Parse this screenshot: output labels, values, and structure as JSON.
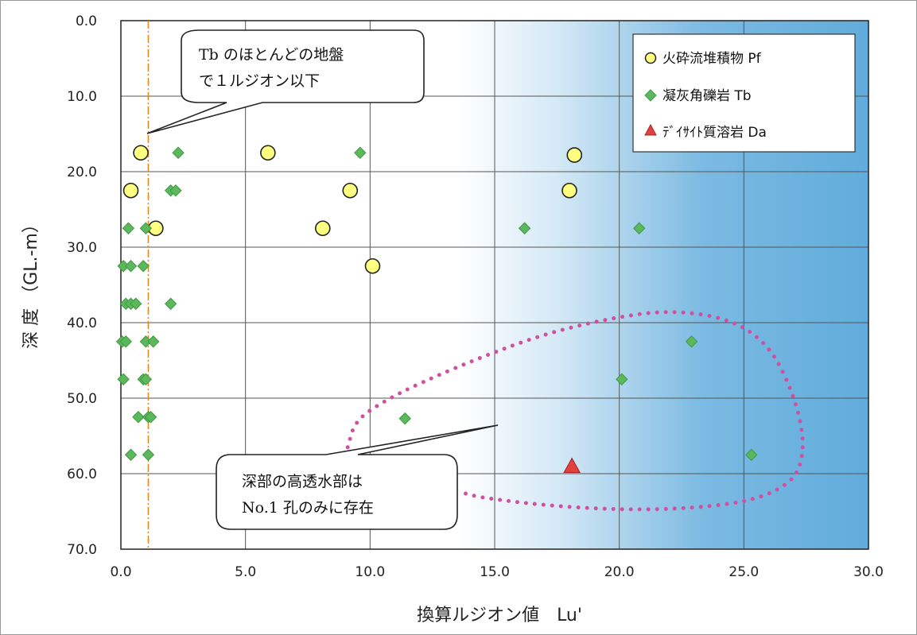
{
  "chart_data": {
    "type": "scatter",
    "xlabel": "換算ルジオン値　Lu'",
    "ylabel": "深 度 （GL.-m）",
    "xlim": [
      0,
      30
    ],
    "ylim": [
      0,
      70
    ],
    "y_inverted": true,
    "x_ticks": [
      "0.0",
      "5.0",
      "10.0",
      "15.0",
      "20.0",
      "25.0",
      "30.0"
    ],
    "y_ticks": [
      "0.0",
      "10.0",
      "20.0",
      "30.0",
      "40.0",
      "50.0",
      "60.0",
      "70.0"
    ],
    "grid": true,
    "legend_position": "top-right",
    "colors": {
      "pf": "#ffff80",
      "tb": "#5cb85c",
      "da": "#e04040",
      "reference_line": "#e08a20",
      "outline": "#d050a0",
      "shading": "#4fa3d8"
    },
    "reference_line_x": 1.1,
    "series": [
      {
        "name": "火砕流堆積物 Pf",
        "marker": "circle",
        "points": [
          [
            0.8,
            17.5
          ],
          [
            5.9,
            17.5
          ],
          [
            18.2,
            17.8
          ],
          [
            0.4,
            22.5
          ],
          [
            9.2,
            22.5
          ],
          [
            18.0,
            22.5
          ],
          [
            1.4,
            27.5
          ],
          [
            8.1,
            27.5
          ],
          [
            10.1,
            32.5
          ]
        ]
      },
      {
        "name": "凝灰角礫岩 Tb",
        "marker": "diamond",
        "points": [
          [
            2.3,
            17.5
          ],
          [
            9.6,
            17.5
          ],
          [
            2.0,
            22.5
          ],
          [
            2.2,
            22.5
          ],
          [
            0.3,
            27.5
          ],
          [
            1.0,
            27.5
          ],
          [
            16.2,
            27.5
          ],
          [
            20.8,
            27.5
          ],
          [
            0.1,
            32.5
          ],
          [
            0.4,
            32.5
          ],
          [
            0.9,
            32.5
          ],
          [
            0.2,
            37.5
          ],
          [
            0.4,
            37.5
          ],
          [
            0.6,
            37.5
          ],
          [
            2.0,
            37.5
          ],
          [
            0.05,
            42.5
          ],
          [
            0.2,
            42.5
          ],
          [
            1.0,
            42.5
          ],
          [
            1.3,
            42.5
          ],
          [
            22.9,
            42.5
          ],
          [
            0.1,
            47.5
          ],
          [
            0.9,
            47.5
          ],
          [
            1.0,
            47.5
          ],
          [
            20.1,
            47.5
          ],
          [
            0.7,
            52.5
          ],
          [
            1.1,
            52.5
          ],
          [
            1.2,
            52.5
          ],
          [
            11.4,
            52.7
          ],
          [
            0.4,
            57.5
          ],
          [
            1.1,
            57.5
          ],
          [
            25.3,
            57.5
          ]
        ]
      },
      {
        "name": "ﾃﾞｲｻｲﾄ質溶岩 Da",
        "marker": "triangle",
        "points": [
          [
            18.1,
            59.0
          ]
        ]
      }
    ],
    "annotations": [
      {
        "lines": [
          "Tb のほとんどの地盤",
          "で１ルジオン以下"
        ]
      },
      {
        "lines": [
          "深部の高透水部は",
          "No.1 孔のみに存在"
        ]
      }
    ]
  }
}
